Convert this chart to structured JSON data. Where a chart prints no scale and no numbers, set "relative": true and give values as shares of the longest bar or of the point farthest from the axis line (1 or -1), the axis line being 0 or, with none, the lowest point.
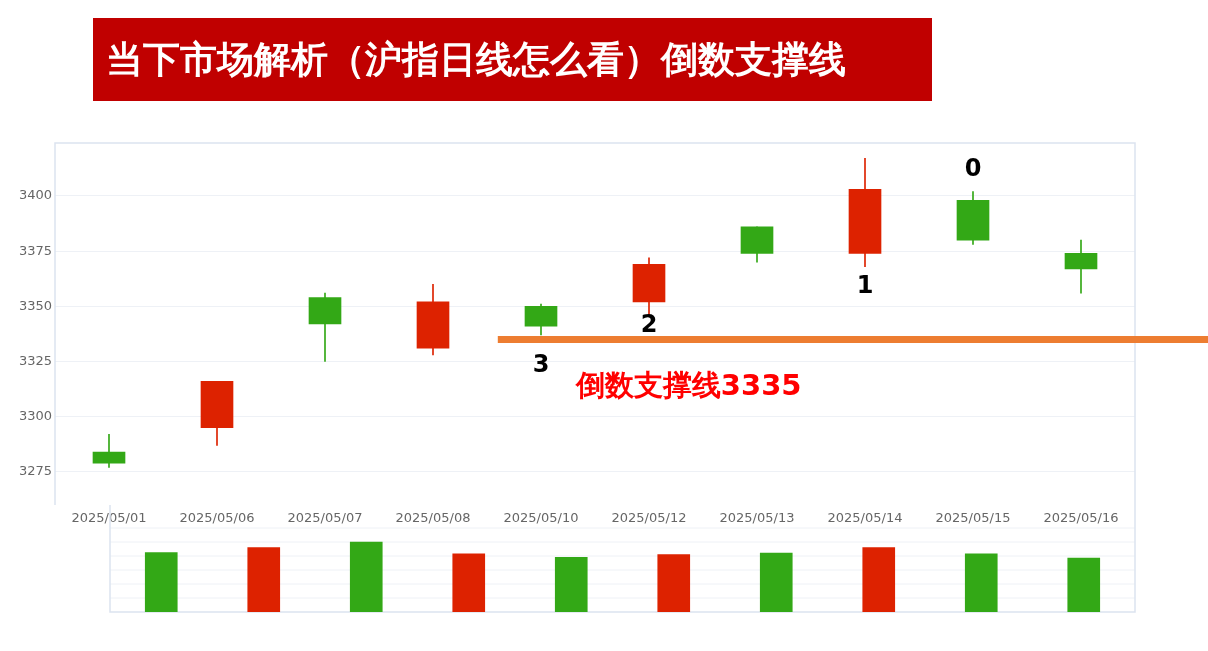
{
  "chart_data": [
    {
      "type": "candlestick",
      "title": "当下市场解析（沪指日线怎么看）倒数支撑线",
      "categories": [
        "2025/05/01",
        "2025/05/06",
        "2025/05/07",
        "2025/05/08",
        "2025/05/10",
        "2025/05/12",
        "2025/05/13",
        "2025/05/14",
        "2025/05/15",
        "2025/05/16"
      ],
      "ohlc": [
        [
          3284,
          3292,
          3277,
          3279
        ],
        [
          3295,
          3316,
          3287,
          3316
        ],
        [
          3354,
          3356,
          3325,
          3342
        ],
        [
          3331,
          3360,
          3328,
          3352
        ],
        [
          3350,
          3351,
          3337,
          3341
        ],
        [
          3352,
          3372,
          3346,
          3369
        ],
        [
          3386,
          3386,
          3370,
          3374
        ],
        [
          3374,
          3417,
          3368,
          3403
        ],
        [
          3398,
          3402,
          3378,
          3380
        ],
        [
          3374,
          3380,
          3356,
          3367
        ]
      ],
      "colors": [
        "#33a816",
        "#dd2200",
        "#33a816",
        "#dd2200",
        "#33a816",
        "#dd2200",
        "#33a816",
        "#dd2200",
        "#33a816",
        "#33a816"
      ],
      "ylim": [
        3260,
        3424
      ],
      "yticks": [
        3275,
        3300,
        3325,
        3350,
        3375,
        3400
      ],
      "grid": "y",
      "ref_lines": [
        {
          "axis": "y",
          "value": 3335,
          "label": "倒数支撑线3335",
          "color": "#ed7d31"
        }
      ],
      "annotations": [
        "3",
        "2",
        "1",
        "0"
      ]
    },
    {
      "type": "bar",
      "relative": true,
      "categories": [
        "2025/05/01",
        "2025/05/06",
        "2025/05/07",
        "2025/05/08",
        "2025/05/10",
        "2025/05/12",
        "2025/05/13",
        "2025/05/14",
        "2025/05/15",
        "2025/05/16"
      ],
      "values": [
        0.85,
        0.92,
        1,
        0.83,
        0.78,
        0.82,
        0.84,
        0.92,
        0.83,
        0.77
      ],
      "colors": [
        "#33a816",
        "#dd2200",
        "#33a816",
        "#dd2200",
        "#33a816",
        "#dd2200",
        "#33a816",
        "#dd2200",
        "#33a816",
        "#33a816"
      ],
      "grid": "y",
      "tick_labels": false
    }
  ]
}
